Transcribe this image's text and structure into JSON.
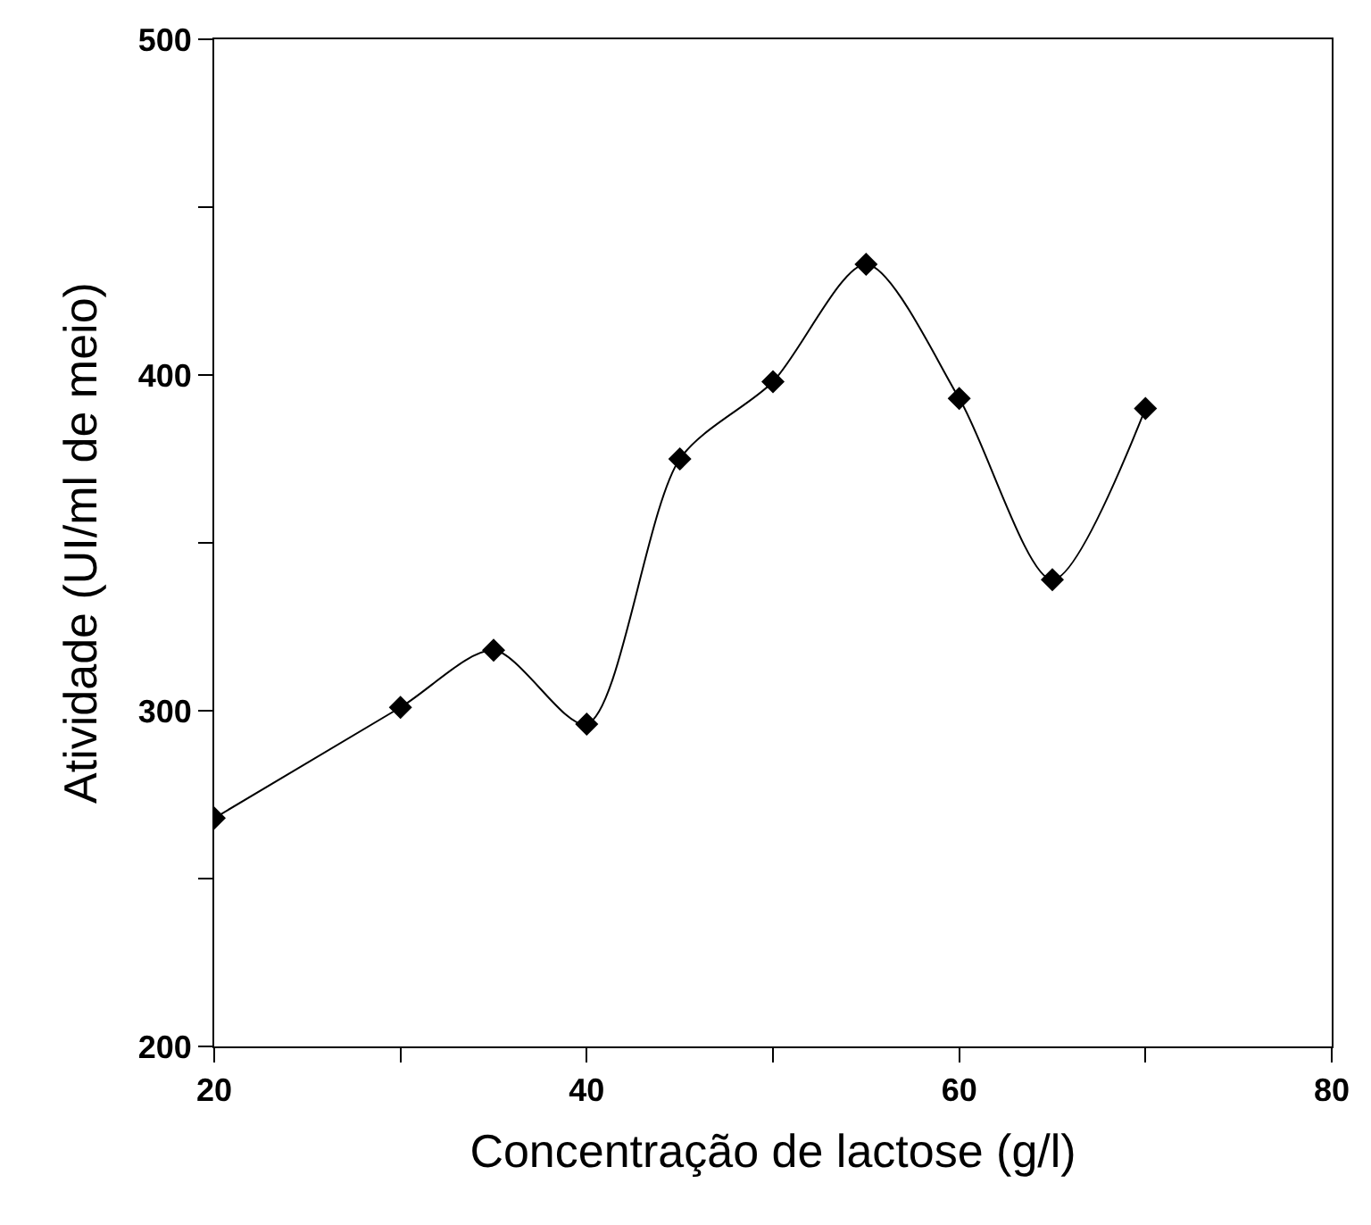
{
  "chart_data": {
    "type": "line",
    "xlabel": "Concentração de lactose (g/l)",
    "ylabel": "Atividade (UI/ml de meio)",
    "x": [
      20,
      30,
      35,
      40,
      45,
      50,
      55,
      60,
      65,
      70
    ],
    "series": [
      {
        "color": "#000000",
        "values": [
          268,
          301,
          318,
          296,
          375,
          398,
          433,
          393,
          339,
          390
        ]
      }
    ],
    "xlim": [
      20,
      80
    ],
    "ylim": [
      200,
      500
    ],
    "xticks": [
      20,
      {
        "value": 30,
        "label": null
      },
      40,
      {
        "value": 50,
        "label": null
      },
      60,
      {
        "value": 70,
        "label": null
      },
      80
    ],
    "yticks": [
      200,
      {
        "value": 250,
        "label": null
      },
      300,
      {
        "value": 350,
        "label": null
      },
      400,
      {
        "value": 450,
        "label": null
      },
      500
    ],
    "marker": "diamond",
    "line_style": "solid",
    "legend": false
  }
}
